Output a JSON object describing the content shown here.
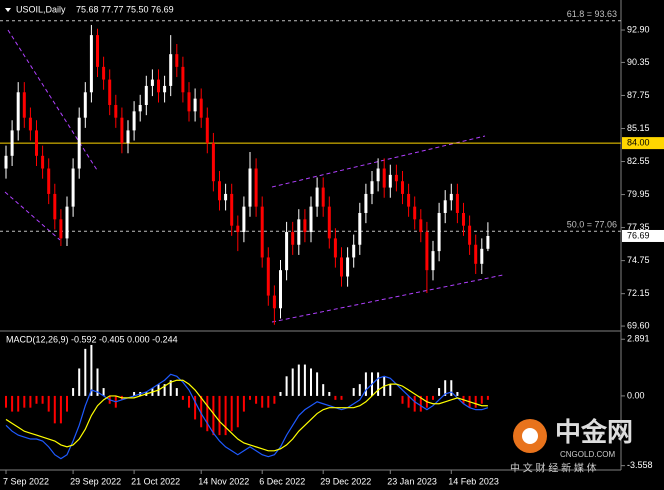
{
  "chart_data": [
    {
      "type": "candlestick",
      "title": "USOIL,Daily",
      "ohlc_label": "75.68 77.77 75.50 76.69",
      "categories": [
        "7 Sep 2022",
        null,
        null,
        null,
        null,
        null,
        null,
        null,
        null,
        null,
        null,
        "29 Sep 2022",
        null,
        null,
        null,
        null,
        null,
        null,
        null,
        null,
        null,
        "21 Oct 2022",
        null,
        null,
        null,
        null,
        null,
        null,
        null,
        null,
        null,
        null,
        "14 Nov 2022",
        null,
        null,
        null,
        null,
        null,
        null,
        null,
        null,
        null,
        "6 Dec 2022",
        null,
        null,
        null,
        null,
        null,
        null,
        null,
        null,
        null,
        "29 Dec 2022",
        null,
        null,
        null,
        null,
        null,
        null,
        null,
        null,
        null,
        null,
        "23 Jan 2023",
        null,
        null,
        null,
        null,
        null,
        null,
        null,
        null,
        null,
        "14 Feb 2023",
        null,
        null,
        null,
        null,
        null,
        null
      ],
      "open": [
        82,
        83,
        85,
        88,
        86,
        85,
        83,
        82,
        80,
        78,
        76.5,
        79,
        82,
        86,
        88,
        92.5,
        90,
        89,
        87,
        86,
        84,
        85,
        86.5,
        87,
        88.5,
        89,
        88,
        88.5,
        91,
        90,
        88,
        86.5,
        87.5,
        86,
        84,
        81,
        79.5,
        80,
        77.5,
        77,
        79,
        82,
        79,
        75,
        72,
        71,
        74,
        77,
        76,
        78,
        77,
        79,
        80.5,
        79,
        76.5,
        75,
        73.5,
        75,
        76,
        78.5,
        80,
        81,
        82,
        80.5,
        81.5,
        81,
        80,
        79,
        78,
        77,
        74,
        75.5,
        78.5,
        79.5,
        80,
        78.5,
        77.5,
        76,
        74.5,
        75.68
      ],
      "high": [
        83.8,
        85.8,
        88.8,
        88.8,
        86.8,
        85.8,
        83.8,
        82.8,
        80.8,
        78.8,
        79.8,
        82.8,
        86.8,
        88.8,
        93.3,
        93.0,
        90.8,
        89.8,
        87.8,
        86.8,
        85.8,
        87.3,
        87.8,
        89.3,
        89.8,
        89.8,
        89.3,
        92.5,
        91.8,
        90.8,
        88.8,
        88.3,
        88.3,
        86.8,
        84.8,
        81.8,
        80.8,
        80.8,
        78.3,
        79.8,
        83.3,
        82.8,
        79.8,
        75.8,
        72.8,
        74.8,
        77.8,
        77.8,
        78.8,
        78.8,
        79.8,
        81.3,
        81.3,
        79.8,
        77.3,
        75.8,
        75.8,
        76.8,
        79.3,
        80.8,
        81.8,
        82.8,
        82.8,
        82.3,
        82.3,
        81.8,
        80.8,
        79.8,
        78.8,
        77.8,
        76.3,
        79.3,
        80.3,
        80.8,
        80.8,
        79.3,
        78.3,
        76.8,
        76.5,
        77.77
      ],
      "low": [
        81.2,
        82.2,
        84.2,
        85.2,
        84.2,
        82.2,
        81.2,
        79.2,
        77.2,
        75.9,
        75.9,
        78.2,
        81.2,
        85.2,
        87.2,
        89.2,
        88.2,
        86.2,
        85.2,
        83.2,
        83.2,
        84.2,
        85.7,
        86.2,
        87.7,
        87.2,
        87.2,
        87.7,
        89.2,
        87.2,
        85.7,
        85.7,
        85.2,
        83.2,
        80.2,
        78.7,
        78.7,
        76.7,
        75.5,
        76.2,
        78.2,
        78.2,
        74.2,
        71.2,
        69.7,
        70.2,
        73.2,
        75.2,
        75.2,
        76.2,
        76.2,
        78.2,
        78.2,
        75.7,
        74.2,
        72.7,
        72.7,
        74.2,
        75.2,
        77.7,
        79.2,
        80.2,
        79.7,
        79.7,
        80.2,
        79.2,
        78.2,
        77.2,
        76.2,
        72.2,
        73.2,
        74.7,
        77.7,
        78.7,
        77.7,
        76.7,
        75.2,
        73.7,
        73.7,
        75.5
      ],
      "close": [
        83,
        85,
        88,
        86,
        85,
        83,
        82,
        80,
        78,
        76.5,
        79,
        82,
        86,
        88,
        92.5,
        90,
        89,
        87,
        86,
        84,
        85,
        86.5,
        87,
        88.5,
        89,
        88,
        88.5,
        91,
        90,
        88,
        86.5,
        87.5,
        86,
        84,
        81,
        79.5,
        80,
        77.5,
        77,
        79,
        82,
        79,
        75,
        72,
        71,
        74,
        77,
        76,
        78,
        77,
        79,
        80.5,
        79,
        76.5,
        75,
        73.5,
        75,
        76,
        78.5,
        80,
        81,
        82,
        80.5,
        81.5,
        81,
        80,
        79,
        78,
        77,
        74,
        75.5,
        78.5,
        79.5,
        80,
        78.5,
        77.5,
        76,
        74.5,
        75.68,
        76.69
      ],
      "up_color": "#ffffff",
      "down_color": "#ff0000",
      "ylim": [
        69.29,
        94.87
      ],
      "yticks": [
        {
          "value": 92.9,
          "label": "92.90"
        },
        {
          "value": 90.35,
          "label": "90.35"
        },
        {
          "value": 87.75,
          "label": "87.75"
        },
        {
          "value": 85.15,
          "label": "85.15"
        },
        {
          "value": 82.55,
          "label": "82.55"
        },
        {
          "value": 79.95,
          "label": "79.95"
        },
        {
          "value": 77.35,
          "label": "77.35"
        },
        {
          "value": 74.75,
          "label": "74.75"
        },
        {
          "value": 72.15,
          "label": "72.15"
        },
        {
          "value": 69.6,
          "label": "69.60"
        }
      ],
      "levels": [
        {
          "value": 93.63,
          "label": "61.8 = 93.63",
          "color": "#c0c0c0",
          "dashed": true
        },
        {
          "value": 77.06,
          "label": "50.0 = 77.06",
          "color": "#c0c0c0",
          "dashed": true
        },
        {
          "value": 84,
          "label": "84.00",
          "color": "#ffd700",
          "dashed": false
        }
      ]
    },
    {
      "type": "macd",
      "title": "MACD(12,26,9) -0.592 -0.405 0.000 -0.244",
      "histogram": [
        -0.6,
        -0.8,
        -0.8,
        -0.6,
        -0.6,
        -0.4,
        -0.4,
        -0.8,
        -1.4,
        -1.4,
        -0.8,
        0.4,
        1.4,
        2.4,
        2.6,
        1.4,
        0.4,
        -0.4,
        -0.6,
        -0.2,
        0,
        0.2,
        0.2,
        0.2,
        0.4,
        0.6,
        0.6,
        0.8,
        0.4,
        -0.2,
        -0.6,
        -1.2,
        -1.6,
        -1.8,
        -2.0,
        -2.0,
        -2.0,
        -1.8,
        -1.6,
        -0.8,
        -0.2,
        -0.4,
        -0.6,
        -0.6,
        -0.4,
        0.2,
        1.0,
        1.4,
        1.6,
        1.6,
        1.4,
        1.2,
        0.6,
        0.2,
        -0.2,
        -0.2,
        0,
        0.4,
        0.6,
        1.2,
        1.2,
        1.2,
        1.0,
        0.6,
        0,
        -0.4,
        -0.6,
        -0.8,
        -0.8,
        -0.6,
        -0.2,
        0.4,
        0.8,
        0.8,
        0.2,
        -0.4,
        -0.6,
        -0.6,
        -0.4,
        -0.2
      ],
      "up_color": "#ffffff",
      "down_color": "#ff0000",
      "macd_line": {
        "color": "#1e5aff",
        "values": [
          -1.5,
          -1.8,
          -2.0,
          -2.1,
          -2.2,
          -2.2,
          -2.3,
          -2.6,
          -3.0,
          -3.2,
          -3.0,
          -2.3,
          -1.5,
          -0.5,
          0.3,
          0.2,
          0.0,
          -0.2,
          -0.3,
          -0.2,
          -0.1,
          0.0,
          0.1,
          0.2,
          0.4,
          0.6,
          0.8,
          1.1,
          1.0,
          0.7,
          0.3,
          -0.3,
          -0.9,
          -1.4,
          -1.9,
          -2.3,
          -2.6,
          -2.8,
          -3.0,
          -2.8,
          -2.6,
          -2.8,
          -3.0,
          -3.1,
          -3.0,
          -2.6,
          -2.0,
          -1.5,
          -1.0,
          -0.7,
          -0.5,
          -0.3,
          -0.4,
          -0.5,
          -0.6,
          -0.7,
          -0.6,
          -0.4,
          -0.2,
          0.3,
          0.6,
          0.9,
          1.0,
          0.9,
          0.6,
          0.3,
          0.0,
          -0.3,
          -0.5,
          -0.7,
          -0.5,
          -0.2,
          0.1,
          0.2,
          -0.1,
          -0.4,
          -0.6,
          -0.7,
          -0.7,
          -0.6
        ]
      },
      "signal_line": {
        "color": "#ffff00",
        "values": [
          -1.2,
          -1.4,
          -1.6,
          -1.8,
          -1.9,
          -2.0,
          -2.1,
          -2.2,
          -2.3,
          -2.5,
          -2.6,
          -2.5,
          -2.2,
          -1.7,
          -1.0,
          -0.5,
          -0.2,
          0.0,
          0.0,
          -0.1,
          -0.1,
          -0.1,
          0.0,
          0.1,
          0.2,
          0.3,
          0.5,
          0.7,
          0.8,
          0.8,
          0.6,
          0.3,
          -0.1,
          -0.5,
          -0.9,
          -1.3,
          -1.6,
          -1.9,
          -2.2,
          -2.4,
          -2.5,
          -2.6,
          -2.7,
          -2.8,
          -2.8,
          -2.7,
          -2.5,
          -2.2,
          -1.8,
          -1.5,
          -1.2,
          -0.9,
          -0.7,
          -0.6,
          -0.6,
          -0.6,
          -0.6,
          -0.6,
          -0.5,
          -0.3,
          0.0,
          0.3,
          0.5,
          0.6,
          0.6,
          0.5,
          0.3,
          0.1,
          -0.1,
          -0.3,
          -0.4,
          -0.4,
          -0.3,
          -0.2,
          -0.1,
          -0.2,
          -0.3,
          -0.4,
          -0.5,
          -0.5
        ]
      },
      "ylim": [
        -3.78,
        3.21
      ],
      "yticks": [
        2.891,
        {
          "value": 0,
          "label": "0.00"
        },
        -3.558
      ]
    }
  ],
  "watermark": {
    "brand": "中金网",
    "url": "CNGOLD.COM",
    "tagline": "中 文 财 经 新 媒 体"
  }
}
